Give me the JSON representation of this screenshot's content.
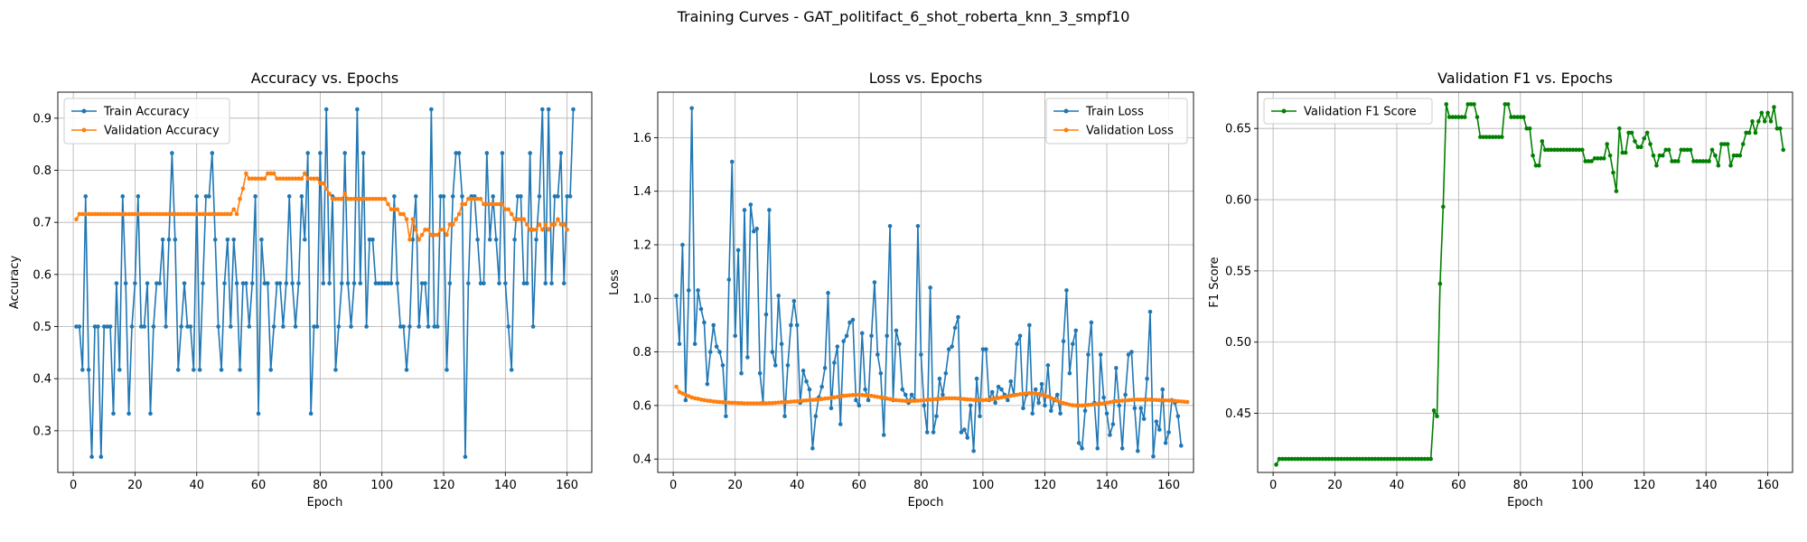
{
  "figure_title": "Training Curves - GAT_politifact_6_shot_roberta_knn_3_smpf10",
  "colors": {
    "train": "#1f77b4",
    "validation": "#ff7f0e",
    "f1": "#008000",
    "grid": "#b0b0b0"
  },
  "chart_data": [
    {
      "type": "line",
      "title": "Accuracy vs. Epochs",
      "xlabel": "Epoch",
      "ylabel": "Accuracy",
      "xlim": [
        -5,
        168
      ],
      "ylim": [
        0.22,
        0.95
      ],
      "xticks": [
        0,
        20,
        40,
        60,
        80,
        100,
        120,
        140,
        160
      ],
      "yticks": [
        0.3,
        0.4,
        0.5,
        0.6,
        0.7,
        0.8,
        0.9
      ],
      "ytick_labels": [
        "0.3",
        "0.4",
        "0.5",
        "0.6",
        "0.7",
        "0.8",
        "0.9"
      ],
      "grid": true,
      "legend_position": "upper-left",
      "x_start": 1,
      "series": [
        {
          "name": "Train Accuracy",
          "color": "#1f77b4",
          "values": [
            0.5,
            0.5,
            0.417,
            0.75,
            0.417,
            0.25,
            0.5,
            0.5,
            0.25,
            0.5,
            0.5,
            0.5,
            0.333,
            0.583,
            0.417,
            0.75,
            0.583,
            0.333,
            0.5,
            0.583,
            0.75,
            0.5,
            0.5,
            0.583,
            0.333,
            0.5,
            0.583,
            0.583,
            0.667,
            0.5,
            0.667,
            0.833,
            0.667,
            0.417,
            0.5,
            0.583,
            0.5,
            0.5,
            0.417,
            0.75,
            0.417,
            0.583,
            0.75,
            0.75,
            0.833,
            0.667,
            0.5,
            0.417,
            0.583,
            0.667,
            0.5,
            0.667,
            0.583,
            0.417,
            0.583,
            0.583,
            0.5,
            0.583,
            0.75,
            0.333,
            0.667,
            0.583,
            0.583,
            0.417,
            0.5,
            0.583,
            0.583,
            0.5,
            0.583,
            0.75,
            0.583,
            0.5,
            0.583,
            0.75,
            0.667,
            0.833,
            0.333,
            0.5,
            0.5,
            0.833,
            0.583,
            0.917,
            0.583,
            0.75,
            0.417,
            0.5,
            0.583,
            0.833,
            0.583,
            0.5,
            0.583,
            0.917,
            0.583,
            0.833,
            0.5,
            0.667,
            0.667,
            0.583,
            0.583,
            0.583,
            0.583,
            0.583,
            0.583,
            0.75,
            0.583,
            0.5,
            0.5,
            0.417,
            0.5,
            0.667,
            0.75,
            0.5,
            0.583,
            0.583,
            0.5,
            0.917,
            0.5,
            0.5,
            0.75,
            0.75,
            0.417,
            0.583,
            0.75,
            0.833,
            0.833,
            0.75,
            0.25,
            0.583,
            0.75,
            0.75,
            0.667,
            0.583,
            0.583,
            0.833,
            0.667,
            0.75,
            0.667,
            0.583,
            0.833,
            0.583,
            0.5,
            0.417,
            0.667,
            0.75,
            0.75,
            0.583,
            0.583,
            0.833,
            0.5,
            0.667,
            0.75,
            0.917,
            0.583,
            0.917,
            0.583,
            0.75,
            0.75,
            0.833,
            0.583,
            0.75,
            0.75,
            0.917
          ]
        },
        {
          "name": "Validation Accuracy",
          "color": "#ff7f0e",
          "values": [
            0.706,
            0.716,
            0.716,
            0.716,
            0.716,
            0.716,
            0.716,
            0.716,
            0.716,
            0.716,
            0.716,
            0.716,
            0.716,
            0.716,
            0.716,
            0.716,
            0.716,
            0.716,
            0.716,
            0.716,
            0.716,
            0.716,
            0.716,
            0.716,
            0.716,
            0.716,
            0.716,
            0.716,
            0.716,
            0.716,
            0.716,
            0.716,
            0.716,
            0.716,
            0.716,
            0.716,
            0.716,
            0.716,
            0.716,
            0.716,
            0.716,
            0.716,
            0.716,
            0.716,
            0.716,
            0.716,
            0.716,
            0.716,
            0.716,
            0.716,
            0.716,
            0.725,
            0.716,
            0.745,
            0.765,
            0.794,
            0.784,
            0.784,
            0.784,
            0.784,
            0.784,
            0.784,
            0.794,
            0.794,
            0.794,
            0.784,
            0.784,
            0.784,
            0.784,
            0.784,
            0.784,
            0.784,
            0.784,
            0.784,
            0.794,
            0.784,
            0.784,
            0.784,
            0.784,
            0.775,
            0.775,
            0.765,
            0.755,
            0.745,
            0.745,
            0.745,
            0.745,
            0.755,
            0.745,
            0.745,
            0.745,
            0.745,
            0.745,
            0.745,
            0.745,
            0.745,
            0.745,
            0.745,
            0.745,
            0.745,
            0.745,
            0.735,
            0.725,
            0.725,
            0.725,
            0.716,
            0.716,
            0.706,
            0.667,
            0.706,
            0.686,
            0.667,
            0.676,
            0.686,
            0.686,
            0.676,
            0.676,
            0.676,
            0.686,
            0.686,
            0.676,
            0.696,
            0.696,
            0.706,
            0.716,
            0.735,
            0.735,
            0.745,
            0.745,
            0.745,
            0.745,
            0.745,
            0.735,
            0.735,
            0.735,
            0.735,
            0.735,
            0.735,
            0.735,
            0.725,
            0.725,
            0.716,
            0.706,
            0.706,
            0.706,
            0.706,
            0.696,
            0.686,
            0.686,
            0.686,
            0.696,
            0.686,
            0.696,
            0.686,
            0.696,
            0.696,
            0.706,
            0.696,
            0.696,
            0.686
          ]
        }
      ]
    },
    {
      "type": "line",
      "title": "Loss vs. Epochs",
      "xlabel": "Epoch",
      "ylabel": "Loss",
      "xlim": [
        -5,
        168
      ],
      "ylim": [
        0.35,
        1.77
      ],
      "xticks": [
        0,
        20,
        40,
        60,
        80,
        100,
        120,
        140,
        160
      ],
      "yticks": [
        0.4,
        0.6,
        0.8,
        1.0,
        1.2,
        1.4,
        1.6
      ],
      "ytick_labels": [
        "0.4",
        "0.6",
        "0.8",
        "1.0",
        "1.2",
        "1.4",
        "1.6"
      ],
      "grid": true,
      "legend_position": "upper-right",
      "x_start": 1,
      "series": [
        {
          "name": "Train Loss",
          "color": "#1f77b4",
          "values": [
            1.01,
            0.83,
            1.2,
            0.62,
            1.03,
            1.71,
            0.83,
            1.03,
            0.96,
            0.91,
            0.68,
            0.8,
            0.9,
            0.82,
            0.8,
            0.75,
            0.56,
            1.07,
            1.51,
            0.86,
            1.18,
            0.72,
            1.33,
            0.78,
            1.35,
            1.25,
            1.26,
            0.72,
            0.61,
            0.94,
            1.33,
            0.8,
            0.75,
            1.01,
            0.83,
            0.56,
            0.75,
            0.9,
            0.99,
            0.9,
            0.61,
            0.73,
            0.69,
            0.66,
            0.44,
            0.56,
            0.63,
            0.67,
            0.74,
            1.02,
            0.59,
            0.76,
            0.82,
            0.53,
            0.84,
            0.86,
            0.91,
            0.92,
            0.62,
            0.6,
            0.87,
            0.66,
            0.62,
            0.86,
            1.06,
            0.79,
            0.72,
            0.49,
            0.86,
            1.27,
            0.62,
            0.88,
            0.83,
            0.66,
            0.64,
            0.61,
            0.64,
            0.62,
            1.27,
            0.79,
            0.6,
            0.5,
            1.04,
            0.5,
            0.56,
            0.7,
            0.64,
            0.72,
            0.81,
            0.82,
            0.89,
            0.93,
            0.5,
            0.51,
            0.48,
            0.6,
            0.43,
            0.7,
            0.56,
            0.81,
            0.81,
            0.62,
            0.65,
            0.61,
            0.67,
            0.66,
            0.64,
            0.62,
            0.69,
            0.64,
            0.83,
            0.86,
            0.59,
            0.64,
            0.9,
            0.57,
            0.66,
            0.61,
            0.68,
            0.6,
            0.75,
            0.58,
            0.62,
            0.64,
            0.57,
            0.84,
            1.03,
            0.72,
            0.83,
            0.88,
            0.46,
            0.44,
            0.58,
            0.79,
            0.91,
            0.61,
            0.44,
            0.79,
            0.63,
            0.57,
            0.49,
            0.53,
            0.74,
            0.6,
            0.44,
            0.64,
            0.79,
            0.8,
            0.59,
            0.43,
            0.59,
            0.55,
            0.7,
            0.95,
            0.41,
            0.54,
            0.51,
            0.66,
            0.46,
            0.5,
            0.62,
            0.61,
            0.56,
            0.45
          ]
        },
        {
          "name": "Validation Loss",
          "color": "#ff7f0e",
          "values": [
            0.67,
            0.65,
            0.645,
            0.64,
            0.635,
            0.63,
            0.627,
            0.625,
            0.622,
            0.62,
            0.618,
            0.617,
            0.615,
            0.614,
            0.613,
            0.612,
            0.612,
            0.611,
            0.61,
            0.61,
            0.609,
            0.609,
            0.608,
            0.608,
            0.608,
            0.608,
            0.608,
            0.608,
            0.608,
            0.608,
            0.609,
            0.609,
            0.61,
            0.611,
            0.612,
            0.612,
            0.613,
            0.614,
            0.615,
            0.616,
            0.617,
            0.618,
            0.619,
            0.62,
            0.621,
            0.622,
            0.623,
            0.624,
            0.626,
            0.627,
            0.628,
            0.63,
            0.632,
            0.634,
            0.636,
            0.637,
            0.638,
            0.639,
            0.64,
            0.64,
            0.639,
            0.638,
            0.637,
            0.636,
            0.634,
            0.632,
            0.63,
            0.628,
            0.626,
            0.624,
            0.622,
            0.62,
            0.619,
            0.618,
            0.617,
            0.617,
            0.617,
            0.617,
            0.618,
            0.619,
            0.62,
            0.621,
            0.622,
            0.623,
            0.624,
            0.625,
            0.626,
            0.627,
            0.627,
            0.627,
            0.627,
            0.626,
            0.625,
            0.624,
            0.623,
            0.622,
            0.621,
            0.62,
            0.62,
            0.62,
            0.621,
            0.622,
            0.624,
            0.626,
            0.628,
            0.63,
            0.632,
            0.634,
            0.636,
            0.638,
            0.64,
            0.642,
            0.644,
            0.645,
            0.646,
            0.646,
            0.645,
            0.643,
            0.64,
            0.637,
            0.633,
            0.628,
            0.623,
            0.618,
            0.613,
            0.609,
            0.606,
            0.603,
            0.601,
            0.6,
            0.6,
            0.6,
            0.601,
            0.602,
            0.603,
            0.604,
            0.605,
            0.607,
            0.608,
            0.61,
            0.612,
            0.614,
            0.616,
            0.617,
            0.618,
            0.619,
            0.62,
            0.621,
            0.622,
            0.622,
            0.622,
            0.622,
            0.622,
            0.622,
            0.621,
            0.621,
            0.62,
            0.62,
            0.619,
            0.619,
            0.618,
            0.617,
            0.616,
            0.615,
            0.614,
            0.613
          ]
        }
      ]
    },
    {
      "type": "line",
      "title": "Validation F1 vs. Epochs",
      "xlabel": "Epoch",
      "ylabel": "F1 Score",
      "xlim": [
        -5,
        168
      ],
      "ylim": [
        0.4085,
        0.6755
      ],
      "xticks": [
        0,
        20,
        40,
        60,
        80,
        100,
        120,
        140,
        160
      ],
      "yticks": [
        0.45,
        0.5,
        0.55,
        0.6,
        0.65
      ],
      "ytick_labels": [
        "0.45",
        "0.50",
        "0.55",
        "0.60",
        "0.65"
      ],
      "grid": true,
      "legend_position": "upper-left",
      "x_start": 1,
      "series": [
        {
          "name": "Validation F1 Score",
          "color": "#008000",
          "values": [
            0.414,
            0.418,
            0.418,
            0.418,
            0.418,
            0.418,
            0.418,
            0.418,
            0.418,
            0.418,
            0.418,
            0.418,
            0.418,
            0.418,
            0.418,
            0.418,
            0.418,
            0.418,
            0.418,
            0.418,
            0.418,
            0.418,
            0.418,
            0.418,
            0.418,
            0.418,
            0.418,
            0.418,
            0.418,
            0.418,
            0.418,
            0.418,
            0.418,
            0.418,
            0.418,
            0.418,
            0.418,
            0.418,
            0.418,
            0.418,
            0.418,
            0.418,
            0.418,
            0.418,
            0.418,
            0.418,
            0.418,
            0.418,
            0.418,
            0.418,
            0.418,
            0.452,
            0.448,
            0.541,
            0.595,
            0.667,
            0.658,
            0.658,
            0.658,
            0.658,
            0.658,
            0.658,
            0.667,
            0.667,
            0.667,
            0.658,
            0.644,
            0.644,
            0.644,
            0.644,
            0.644,
            0.644,
            0.644,
            0.644,
            0.667,
            0.667,
            0.658,
            0.658,
            0.658,
            0.658,
            0.658,
            0.65,
            0.65,
            0.631,
            0.624,
            0.624,
            0.641,
            0.635,
            0.635,
            0.635,
            0.635,
            0.635,
            0.635,
            0.635,
            0.635,
            0.635,
            0.635,
            0.635,
            0.635,
            0.635,
            0.627,
            0.627,
            0.627,
            0.629,
            0.629,
            0.629,
            0.629,
            0.639,
            0.631,
            0.619,
            0.606,
            0.65,
            0.633,
            0.633,
            0.647,
            0.647,
            0.641,
            0.637,
            0.637,
            0.643,
            0.647,
            0.639,
            0.631,
            0.624,
            0.631,
            0.631,
            0.635,
            0.635,
            0.627,
            0.627,
            0.627,
            0.635,
            0.635,
            0.635,
            0.635,
            0.627,
            0.627,
            0.627,
            0.627,
            0.627,
            0.627,
            0.635,
            0.631,
            0.624,
            0.639,
            0.639,
            0.639,
            0.624,
            0.631,
            0.631,
            0.631,
            0.639,
            0.647,
            0.647,
            0.655,
            0.647,
            0.655,
            0.661,
            0.655,
            0.661,
            0.655,
            0.665,
            0.65,
            0.65,
            0.635
          ]
        }
      ]
    }
  ]
}
